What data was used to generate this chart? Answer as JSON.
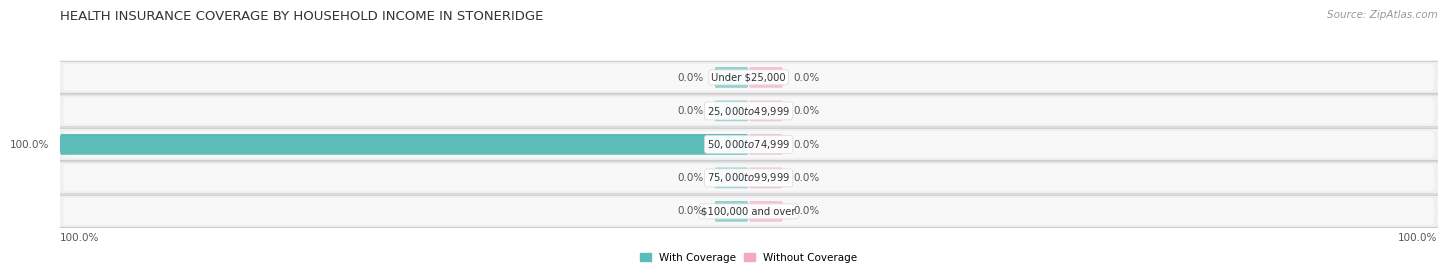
{
  "title": "HEALTH INSURANCE COVERAGE BY HOUSEHOLD INCOME IN STONERIDGE",
  "source": "Source: ZipAtlas.com",
  "categories": [
    "Under $25,000",
    "$25,000 to $49,999",
    "$50,000 to $74,999",
    "$75,000 to $99,999",
    "$100,000 and over"
  ],
  "with_coverage": [
    0.0,
    0.0,
    100.0,
    0.0,
    0.0
  ],
  "without_coverage": [
    0.0,
    0.0,
    0.0,
    0.0,
    0.0
  ],
  "coverage_color": "#5bbcb8",
  "no_coverage_color": "#f4a8bb",
  "row_bg_color": "#f0f0f0",
  "row_inner_bg": "#f8f8f8",
  "title_color": "#333333",
  "source_color": "#999999",
  "label_color": "#555555",
  "white": "#ffffff",
  "legend_label_coverage": "With Coverage",
  "legend_label_no_coverage": "Without Coverage",
  "stub_size": 5.0,
  "bar_height": 0.62,
  "figsize": [
    14.06,
    2.69
  ],
  "dpi": 100
}
